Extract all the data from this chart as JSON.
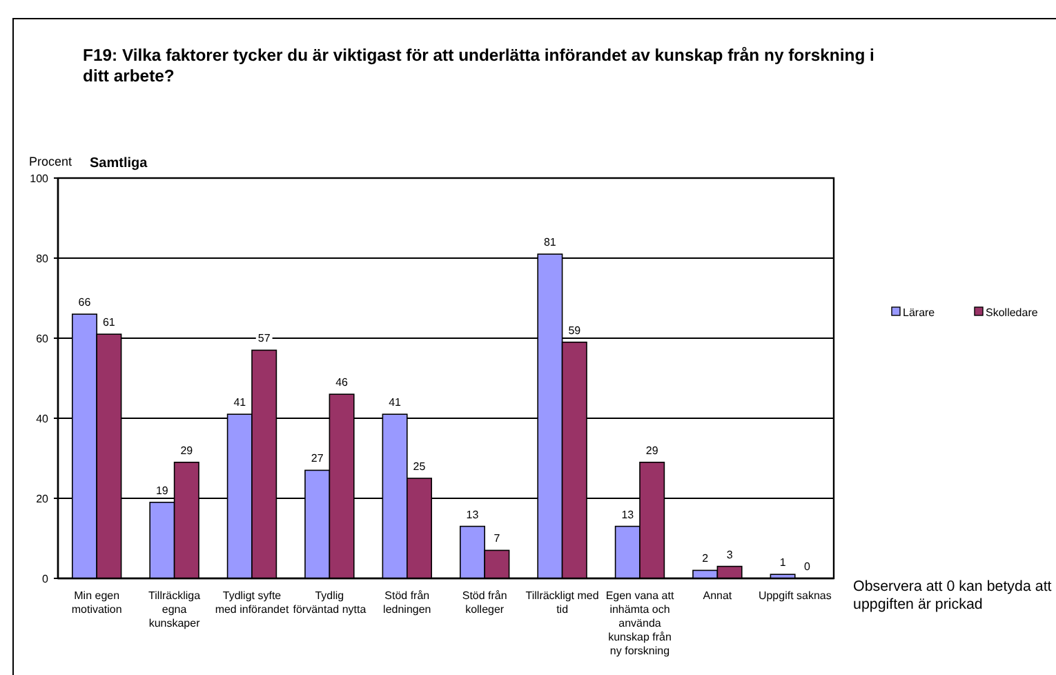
{
  "chart_data": {
    "type": "bar",
    "title": "F19: Vilka faktorer tycker du är viktigast för att underlätta införandet av kunskap från ny forskning i ditt arbete?",
    "subtitle": "Samtliga",
    "ylabel": "Procent",
    "categories": [
      "Min egen motivation",
      "Tillräckliga egna kunskaper",
      "Tydligt syfte med införandet",
      "Tydlig förväntad nytta",
      "Stöd från ledningen",
      "Stöd från kolleger",
      "Tillräckligt med tid",
      "Egen vana att inhämta och använda kunskap från ny forskning",
      "Annat",
      "Uppgift saknas"
    ],
    "series": [
      {
        "name": "Lärare",
        "color": "#9999ff",
        "values": [
          66,
          19,
          41,
          27,
          41,
          13,
          81,
          13,
          2,
          1
        ]
      },
      {
        "name": "Skolledare",
        "color": "#993366",
        "values": [
          61,
          29,
          57,
          46,
          25,
          7,
          59,
          29,
          3,
          0
        ]
      }
    ],
    "ylim": [
      0,
      100
    ],
    "yticks": [
      0,
      20,
      40,
      60,
      80,
      100
    ],
    "grid": "y",
    "legend": "right",
    "data_labels": true,
    "annotations": [
      "Observera att 0 kan betyda att uppgiften är prickad"
    ]
  }
}
